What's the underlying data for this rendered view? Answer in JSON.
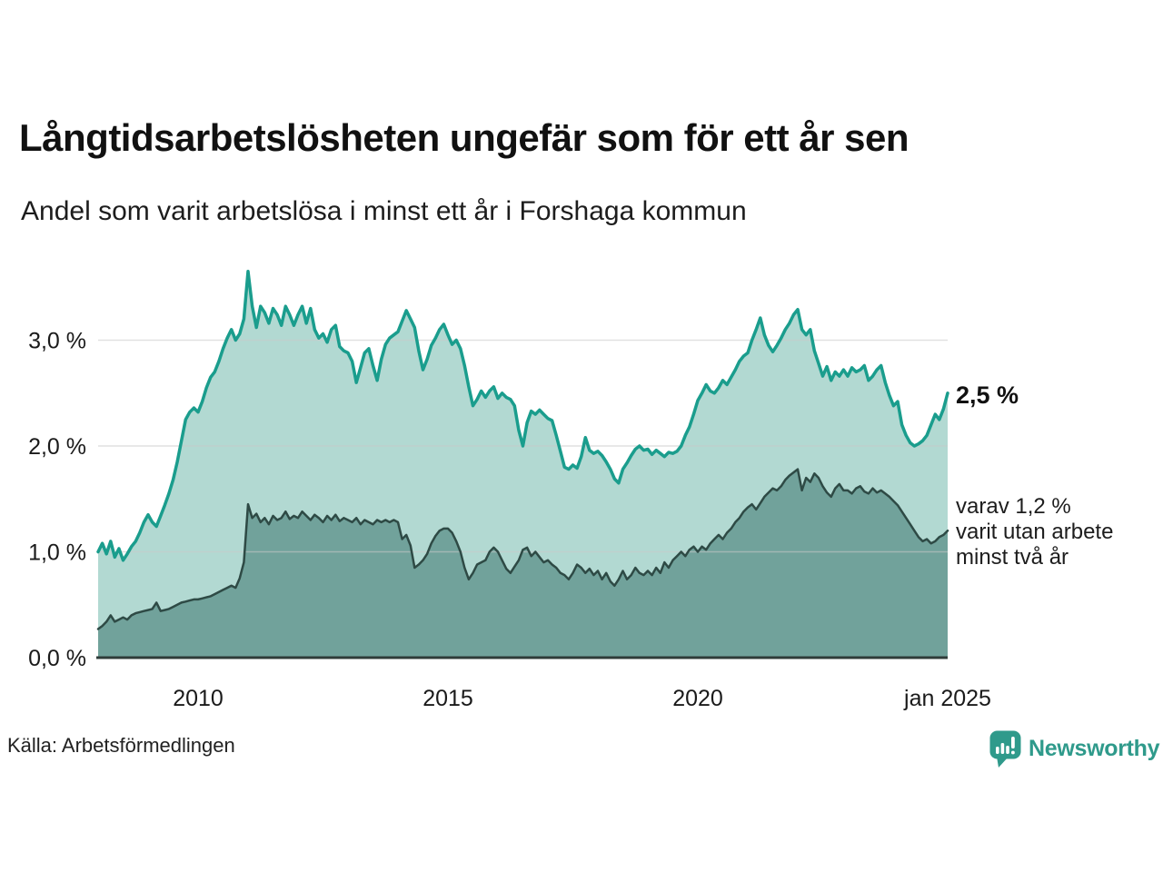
{
  "header": {
    "title": "Långtidsarbetslösheten ungefär som för ett år sen",
    "subtitle": "Andel som varit arbetslösa i minst ett år i Forshaga kommun"
  },
  "annotations": {
    "latest_total": "2,5 %",
    "latest_secondary_lines": [
      "varav 1,2 %",
      "varit utan arbete",
      "minst två år"
    ]
  },
  "footer": {
    "source": "Källa: Arbetsförmedlingen",
    "brand": {
      "name": "Newsworthy",
      "icon": "bar-chart-bubble-icon",
      "color": "#2f9a8b"
    }
  },
  "chart_data": {
    "type": "area",
    "title": "Långtidsarbetslösheten ungefär som för ett år sen",
    "subtitle": "Andel som varit arbetslösa i minst ett år i Forshaga kommun",
    "unit": "%",
    "x_start_year": 2008,
    "x_months_step": 1,
    "x_end_label": "jan 2025",
    "x_ticks": [
      {
        "label": "2010",
        "year": 2010
      },
      {
        "label": "2015",
        "year": 2015
      },
      {
        "label": "2020",
        "year": 2020
      },
      {
        "label": "jan 2025",
        "year": 2025
      }
    ],
    "y_ticks": [
      {
        "label": "0,0 %",
        "value": 0
      },
      {
        "label": "1,0 %",
        "value": 1
      },
      {
        "label": "2,0 %",
        "value": 2
      },
      {
        "label": "3,0 %",
        "value": 3
      }
    ],
    "ylim": [
      0,
      3.85
    ],
    "grid": true,
    "legend_position": "right-annotations",
    "colors": {
      "grid": "#c9c9c9",
      "axis": "#2f3c39",
      "text": "#1a1a1a"
    },
    "series": [
      {
        "name": "Andel som varit arbetslösa i minst ett år",
        "latest_value_label": "2,5 %",
        "latest_value": 2.5,
        "line_color": "#1a9d8d",
        "fill_color": "#b2d9d2",
        "values": [
          1.0,
          1.08,
          0.98,
          1.1,
          0.95,
          1.03,
          0.92,
          0.98,
          1.05,
          1.1,
          1.18,
          1.28,
          1.35,
          1.28,
          1.24,
          1.34,
          1.44,
          1.55,
          1.68,
          1.85,
          2.05,
          2.25,
          2.32,
          2.36,
          2.32,
          2.42,
          2.55,
          2.65,
          2.7,
          2.8,
          2.92,
          3.02,
          3.1,
          3.0,
          3.06,
          3.2,
          3.65,
          3.32,
          3.12,
          3.32,
          3.26,
          3.16,
          3.3,
          3.24,
          3.14,
          3.32,
          3.24,
          3.14,
          3.24,
          3.32,
          3.16,
          3.3,
          3.1,
          3.02,
          3.06,
          2.98,
          3.1,
          3.14,
          2.94,
          2.9,
          2.88,
          2.8,
          2.6,
          2.74,
          2.88,
          2.92,
          2.76,
          2.62,
          2.82,
          2.96,
          3.02,
          3.05,
          3.08,
          3.18,
          3.28,
          3.2,
          3.12,
          2.9,
          2.72,
          2.82,
          2.95,
          3.02,
          3.1,
          3.15,
          3.05,
          2.96,
          3.0,
          2.92,
          2.76,
          2.56,
          2.38,
          2.44,
          2.52,
          2.46,
          2.52,
          2.56,
          2.45,
          2.5,
          2.46,
          2.44,
          2.38,
          2.15,
          2.0,
          2.22,
          2.33,
          2.3,
          2.34,
          2.3,
          2.26,
          2.24,
          2.1,
          1.95,
          1.8,
          1.78,
          1.82,
          1.79,
          1.9,
          2.08,
          1.96,
          1.93,
          1.95,
          1.91,
          1.85,
          1.78,
          1.69,
          1.65,
          1.78,
          1.84,
          1.91,
          1.97,
          2.0,
          1.96,
          1.97,
          1.92,
          1.96,
          1.93,
          1.9,
          1.94,
          1.93,
          1.95,
          2.0,
          2.1,
          2.18,
          2.3,
          2.43,
          2.5,
          2.58,
          2.52,
          2.5,
          2.55,
          2.62,
          2.58,
          2.65,
          2.72,
          2.8,
          2.85,
          2.88,
          3.0,
          3.1,
          3.21,
          3.05,
          2.95,
          2.89,
          2.95,
          3.02,
          3.1,
          3.16,
          3.24,
          3.29,
          3.1,
          3.05,
          3.1,
          2.9,
          2.78,
          2.66,
          2.75,
          2.62,
          2.7,
          2.66,
          2.72,
          2.66,
          2.74,
          2.7,
          2.72,
          2.76,
          2.62,
          2.66,
          2.72,
          2.76,
          2.6,
          2.48,
          2.38,
          2.42,
          2.2,
          2.1,
          2.03,
          2.0,
          2.02,
          2.05,
          2.1,
          2.2,
          2.3,
          2.25,
          2.35,
          2.5
        ]
      },
      {
        "name": "varav utan arbete minst två år",
        "latest_value_label": "1,2 %",
        "latest_value": 1.2,
        "line_color": "#2e4a45",
        "fill_color": "#71a29b",
        "values": [
          0.27,
          0.3,
          0.34,
          0.4,
          0.34,
          0.36,
          0.38,
          0.36,
          0.4,
          0.42,
          0.43,
          0.44,
          0.45,
          0.46,
          0.52,
          0.44,
          0.45,
          0.46,
          0.48,
          0.5,
          0.52,
          0.53,
          0.54,
          0.55,
          0.55,
          0.56,
          0.57,
          0.58,
          0.6,
          0.62,
          0.64,
          0.66,
          0.68,
          0.66,
          0.75,
          0.9,
          1.45,
          1.32,
          1.36,
          1.28,
          1.32,
          1.26,
          1.34,
          1.3,
          1.32,
          1.38,
          1.31,
          1.34,
          1.32,
          1.38,
          1.34,
          1.3,
          1.35,
          1.32,
          1.28,
          1.34,
          1.3,
          1.35,
          1.29,
          1.32,
          1.3,
          1.28,
          1.32,
          1.26,
          1.3,
          1.28,
          1.26,
          1.3,
          1.28,
          1.3,
          1.28,
          1.3,
          1.28,
          1.12,
          1.16,
          1.06,
          0.85,
          0.88,
          0.92,
          0.98,
          1.08,
          1.15,
          1.2,
          1.22,
          1.22,
          1.18,
          1.1,
          1.0,
          0.85,
          0.74,
          0.8,
          0.88,
          0.9,
          0.92,
          1.0,
          1.04,
          1.0,
          0.92,
          0.84,
          0.8,
          0.86,
          0.92,
          1.02,
          1.04,
          0.96,
          1.0,
          0.95,
          0.9,
          0.92,
          0.88,
          0.85,
          0.8,
          0.78,
          0.74,
          0.8,
          0.88,
          0.85,
          0.8,
          0.84,
          0.78,
          0.82,
          0.74,
          0.8,
          0.72,
          0.68,
          0.74,
          0.82,
          0.74,
          0.78,
          0.85,
          0.8,
          0.78,
          0.82,
          0.78,
          0.85,
          0.8,
          0.9,
          0.85,
          0.92,
          0.96,
          1.0,
          0.96,
          1.02,
          1.05,
          1.0,
          1.05,
          1.02,
          1.08,
          1.12,
          1.16,
          1.12,
          1.18,
          1.22,
          1.28,
          1.32,
          1.38,
          1.42,
          1.45,
          1.4,
          1.46,
          1.52,
          1.56,
          1.6,
          1.58,
          1.62,
          1.68,
          1.72,
          1.75,
          1.78,
          1.58,
          1.7,
          1.66,
          1.74,
          1.7,
          1.62,
          1.56,
          1.52,
          1.6,
          1.64,
          1.58,
          1.58,
          1.55,
          1.6,
          1.62,
          1.57,
          1.55,
          1.6,
          1.56,
          1.58,
          1.55,
          1.52,
          1.48,
          1.44,
          1.38,
          1.32,
          1.26,
          1.2,
          1.14,
          1.1,
          1.12,
          1.08,
          1.1,
          1.14,
          1.16,
          1.2
        ]
      }
    ]
  }
}
